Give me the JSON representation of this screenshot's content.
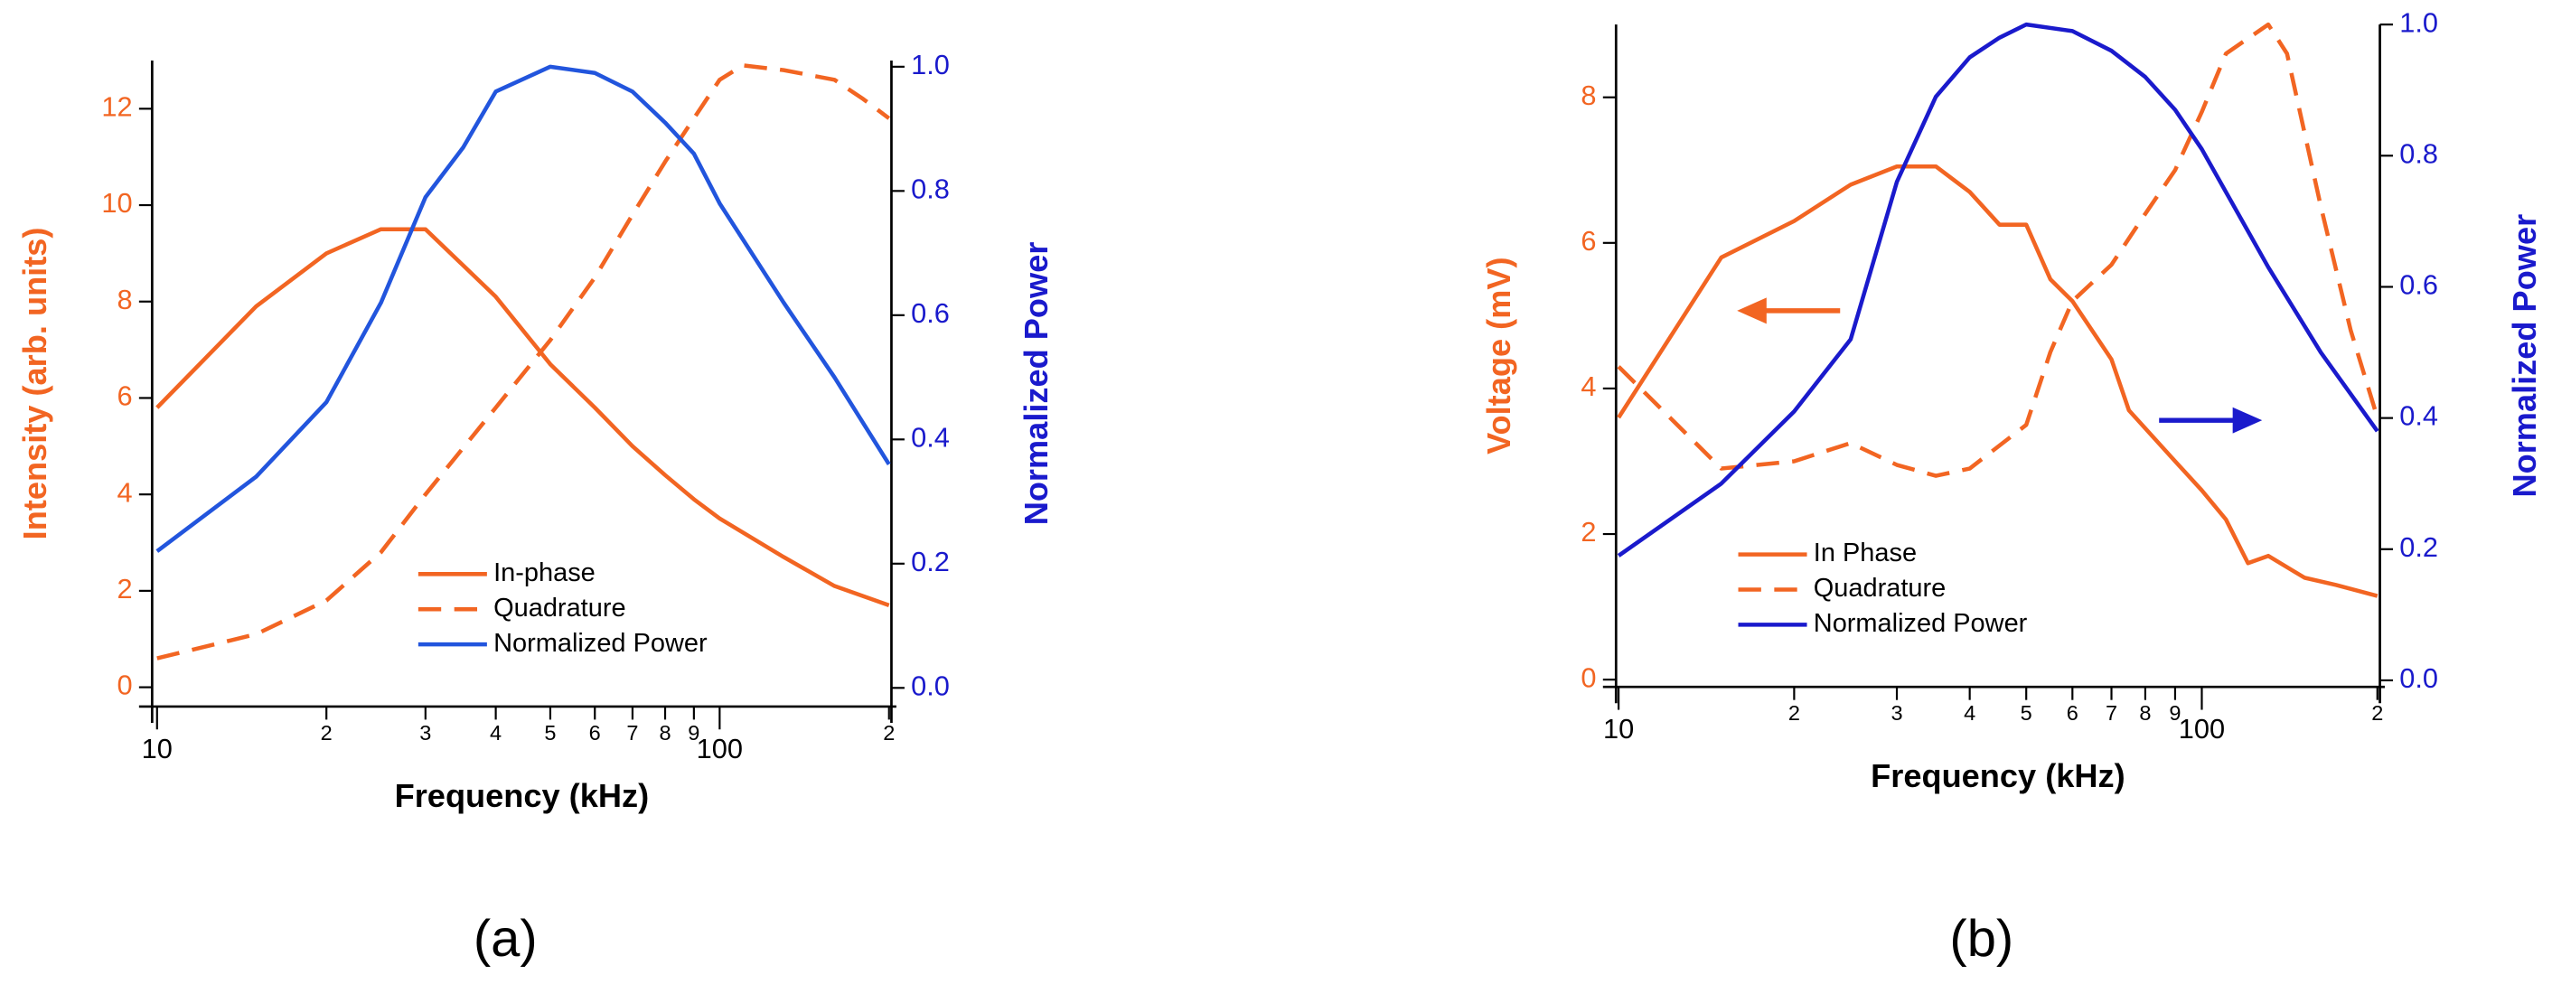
{
  "chart_data": [
    {
      "type": "line",
      "caption": "(a)",
      "xlabel": "Frequency (kHz)",
      "ylabel": "Intensity (arb. units)",
      "y2label": "Normalized Power",
      "xscale": "log",
      "xlim": [
        9.8,
        202
      ],
      "ylim": [
        -0.4,
        13
      ],
      "y2lim": [
        -0.03,
        1.01
      ],
      "legend": "lower center",
      "xticks": [
        {
          "value": 10,
          "label": "10"
        },
        {
          "value": 20,
          "label": "2"
        },
        {
          "value": 30,
          "label": "3"
        },
        {
          "value": 40,
          "label": "4"
        },
        {
          "value": 50,
          "label": "5"
        },
        {
          "value": 60,
          "label": "6"
        },
        {
          "value": 70,
          "label": "7"
        },
        {
          "value": 80,
          "label": "8"
        },
        {
          "value": 90,
          "label": "9"
        },
        {
          "value": 100,
          "label": "100"
        },
        {
          "value": 200,
          "label": "2"
        }
      ],
      "yticks": [
        0,
        2,
        4,
        6,
        8,
        10,
        12
      ],
      "y2ticks": [
        {
          "value": 0,
          "label": "0.0"
        },
        0.2,
        0.4,
        0.6,
        0.8,
        {
          "value": 1,
          "label": "1.0"
        }
      ],
      "ycolor": "#f26522",
      "y2color": "#1a1acc",
      "series": [
        {
          "name": "In-phase",
          "color": "#f26522",
          "linestyle": "solid",
          "x": [
            10,
            15,
            20,
            25,
            30,
            40,
            50,
            60,
            70,
            80,
            90,
            100,
            130,
            160,
            200
          ],
          "values": [
            5.8,
            7.9,
            9.0,
            9.5,
            9.5,
            8.1,
            6.7,
            5.8,
            5.0,
            4.4,
            3.9,
            3.5,
            2.7,
            2.1,
            1.7
          ]
        },
        {
          "name": "Quadrature",
          "color": "#f26522",
          "linestyle": "dashed",
          "x": [
            10,
            15,
            20,
            25,
            30,
            40,
            50,
            60,
            70,
            80,
            90,
            100,
            110,
            130,
            160,
            180,
            200
          ],
          "values": [
            0.6,
            1.1,
            1.8,
            2.8,
            4.0,
            5.8,
            7.2,
            8.5,
            9.8,
            10.9,
            11.8,
            12.6,
            12.9,
            12.8,
            12.6,
            12.2,
            11.8
          ]
        },
        {
          "name": "Normalized Power",
          "color": "#2255dd",
          "linestyle": "solid",
          "axis": "y2",
          "x": [
            10,
            15,
            20,
            25,
            30,
            35,
            40,
            50,
            60,
            70,
            80,
            90,
            100,
            130,
            160,
            200
          ],
          "values": [
            0.22,
            0.34,
            0.46,
            0.62,
            0.79,
            0.87,
            0.96,
            1.0,
            0.99,
            0.96,
            0.91,
            0.86,
            0.78,
            0.62,
            0.5,
            0.36
          ]
        }
      ]
    },
    {
      "type": "line",
      "caption": "(b)",
      "xlabel": "Frequency (kHz)",
      "ylabel": "Voltage (mV)",
      "y2label": "Normalized Power",
      "xscale": "log",
      "xlim": [
        9.9,
        202
      ],
      "ylim": [
        -0.1,
        9
      ],
      "y2lim": [
        -0.01,
        1.0
      ],
      "legend": "lower left",
      "xticks": [
        {
          "value": 10,
          "label": "10"
        },
        {
          "value": 20,
          "label": "2"
        },
        {
          "value": 30,
          "label": "3"
        },
        {
          "value": 40,
          "label": "4"
        },
        {
          "value": 50,
          "label": "5"
        },
        {
          "value": 60,
          "label": "6"
        },
        {
          "value": 70,
          "label": "7"
        },
        {
          "value": 80,
          "label": "8"
        },
        {
          "value": 90,
          "label": "9"
        },
        {
          "value": 100,
          "label": "100"
        },
        {
          "value": 200,
          "label": "2"
        }
      ],
      "yticks": [
        0,
        2,
        4,
        6,
        8
      ],
      "y2ticks": [
        {
          "value": 0,
          "label": "0.0"
        },
        0.2,
        0.4,
        0.6,
        0.8,
        {
          "value": 1,
          "label": "1.0"
        }
      ],
      "ycolor": "#f26522",
      "y2color": "#1a1acc",
      "series": [
        {
          "name": "In Phase",
          "color": "#f26522",
          "linestyle": "solid",
          "x": [
            10,
            15,
            20,
            25,
            30,
            35,
            40,
            45,
            50,
            55,
            60,
            70,
            75,
            90,
            100,
            110,
            120,
            130,
            150,
            170,
            200
          ],
          "values": [
            3.6,
            5.8,
            6.3,
            6.8,
            7.05,
            7.05,
            6.7,
            6.25,
            6.25,
            5.5,
            5.2,
            4.4,
            3.7,
            3.0,
            2.6,
            2.2,
            1.6,
            1.7,
            1.4,
            1.3,
            1.15
          ]
        },
        {
          "name": "Quadrature",
          "color": "#f26522",
          "linestyle": "dashed",
          "x": [
            10,
            15,
            20,
            25,
            30,
            35,
            40,
            50,
            55,
            60,
            70,
            80,
            90,
            100,
            110,
            130,
            140,
            160,
            180,
            200
          ],
          "values": [
            4.3,
            2.9,
            3.0,
            3.25,
            2.95,
            2.8,
            2.9,
            3.5,
            4.5,
            5.2,
            5.7,
            6.4,
            7.0,
            7.8,
            8.6,
            9.0,
            8.6,
            6.5,
            4.8,
            3.6
          ]
        },
        {
          "name": "Normalized Power",
          "color": "#1a1acc",
          "linestyle": "solid",
          "axis": "y2",
          "x": [
            10,
            15,
            20,
            25,
            30,
            35,
            40,
            45,
            50,
            60,
            70,
            80,
            90,
            100,
            130,
            160,
            200
          ],
          "values": [
            0.19,
            0.3,
            0.41,
            0.52,
            0.76,
            0.89,
            0.95,
            0.98,
            1.0,
            0.99,
            0.96,
            0.92,
            0.87,
            0.81,
            0.63,
            0.5,
            0.38
          ]
        }
      ]
    }
  ]
}
